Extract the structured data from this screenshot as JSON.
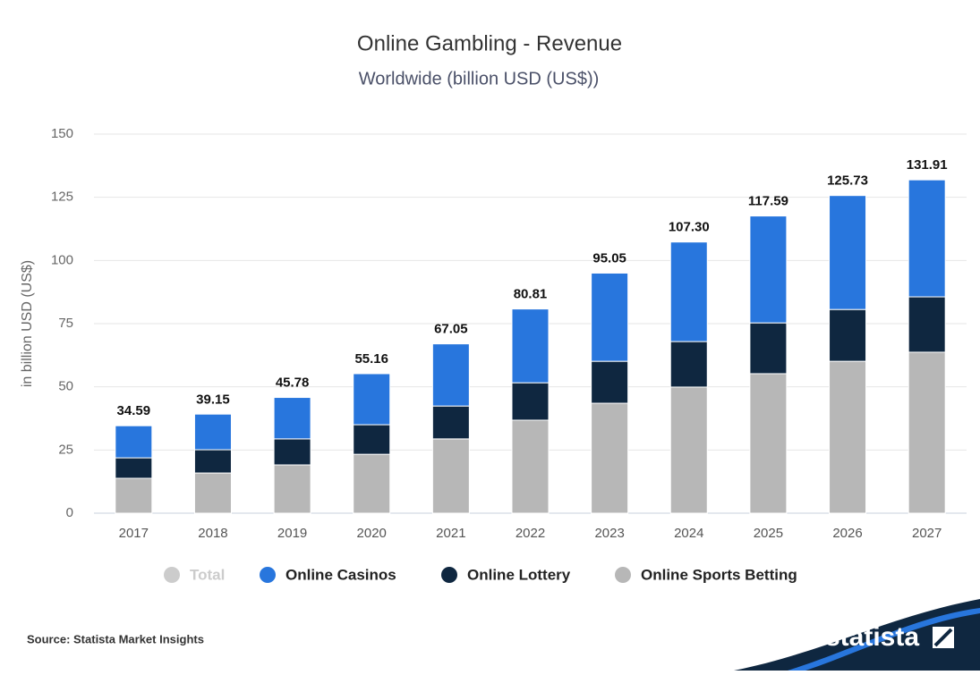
{
  "chart_data": {
    "type": "stacked_bar",
    "title": "Online Gambling - Revenue",
    "subtitle": "Worldwide (billion USD (US$))",
    "y_label": "in billion USD (US$)",
    "categories": [
      "2017",
      "2018",
      "2019",
      "2020",
      "2021",
      "2022",
      "2023",
      "2024",
      "2025",
      "2026",
      "2027"
    ],
    "series": [
      {
        "name": "Online Sports Betting",
        "color": "#b7b7b7",
        "values": [
          13.8,
          15.9,
          19.1,
          23.3,
          29.4,
          36.8,
          43.5,
          49.9,
          55.2,
          60.1,
          63.7
        ]
      },
      {
        "name": "Online Lottery",
        "color": "#0f2740",
        "values": [
          8.1,
          9.2,
          10.3,
          11.7,
          13.0,
          14.8,
          16.6,
          18.0,
          20.1,
          20.5,
          21.9
        ]
      },
      {
        "name": "Online Casinos",
        "color": "#2876dd",
        "values": [
          12.7,
          14.1,
          16.4,
          20.2,
          24.6,
          29.2,
          34.9,
          39.4,
          42.3,
          45.1,
          46.3
        ]
      }
    ],
    "totals": {
      "name": "Total",
      "color": "#cccccc",
      "values": [
        34.59,
        39.15,
        45.78,
        55.16,
        67.05,
        80.81,
        95.05,
        107.3,
        117.59,
        125.73,
        131.91
      ],
      "value_labels": [
        "34.59",
        "39.15",
        "45.78",
        "55.16",
        "67.05",
        "80.81",
        "95.05",
        "107.30",
        "117.59",
        "125.73",
        "131.91"
      ]
    },
    "ylim": [
      0,
      150
    ],
    "yticks": [
      0,
      25,
      50,
      75,
      100,
      125,
      150
    ],
    "grid": true,
    "source": "Source: Statista Market Insights",
    "logo": "statista"
  }
}
